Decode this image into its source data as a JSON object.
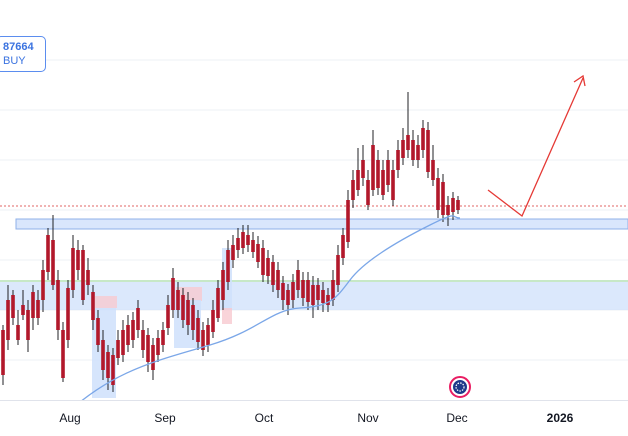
{
  "signal": {
    "price": "87664",
    "action": "BUY"
  },
  "x_axis": {
    "months": [
      "Aug",
      "Sep",
      "Oct",
      "Nov",
      "Dec",
      "2026"
    ]
  },
  "colors": {
    "bull": "#2962ff",
    "bear": "#b2182b",
    "wick": "#202124",
    "zone_blue": "#cfe0fb",
    "zone_red": "#f7c9d0",
    "moving_average": "#7ba7e8",
    "projection": "#e53935",
    "dotted_level": "#e06666",
    "green_level": "#8fd18f"
  },
  "logo": {
    "name": "tradingview-badge-icon"
  }
}
